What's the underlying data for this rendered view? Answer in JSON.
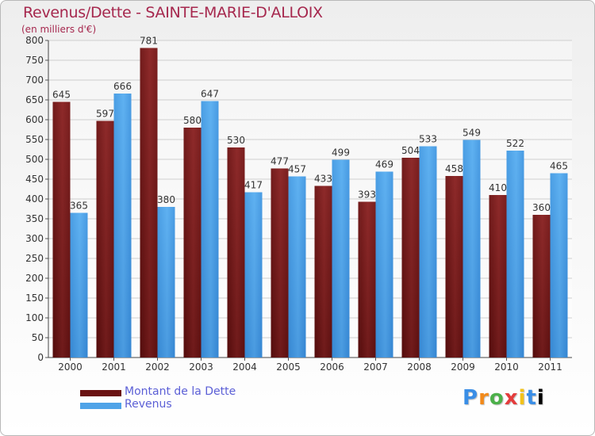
{
  "chart_data": {
    "type": "bar",
    "title": "Revenus/Dette - SAINTE-MARIE-D'ALLOIX",
    "subtitle": "(en milliers d'€)",
    "xlabel": "",
    "ylabel": "",
    "ylim": [
      0,
      800
    ],
    "yticks": [
      0,
      50,
      100,
      150,
      200,
      250,
      300,
      350,
      400,
      450,
      500,
      550,
      600,
      650,
      700,
      750,
      800
    ],
    "categories": [
      "2000",
      "2001",
      "2002",
      "2003",
      "2004",
      "2005",
      "2006",
      "2007",
      "2008",
      "2009",
      "2010",
      "2011"
    ],
    "series": [
      {
        "name": "Montant de la Dette",
        "color": "#7a1e1e",
        "values": [
          645,
          597,
          781,
          580,
          530,
          477,
          433,
          393,
          504,
          458,
          410,
          360
        ]
      },
      {
        "name": "Revenus",
        "color": "#4fa3e8",
        "values": [
          365,
          666,
          380,
          647,
          417,
          457,
          499,
          469,
          533,
          549,
          522,
          465
        ]
      }
    ],
    "grid": true,
    "legend_position": "bottom-left"
  },
  "logo": [
    "P",
    "r",
    "o",
    "x",
    "i",
    "t",
    "i"
  ]
}
